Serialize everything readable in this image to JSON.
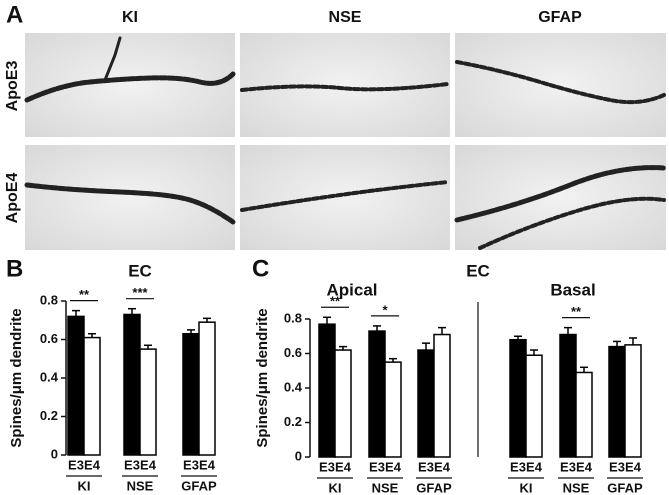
{
  "panel_a": {
    "label": "A",
    "columns": [
      "KI",
      "NSE",
      "GFAP"
    ],
    "rows": [
      "ApoE3",
      "ApoE4"
    ]
  },
  "chart_data": [
    {
      "type": "bar",
      "panel_label": "B",
      "title": "EC",
      "ylabel": "Spines/μm dendrite",
      "categories": [
        "KI",
        "NSE",
        "GFAP"
      ],
      "ylim": [
        0,
        0.8
      ],
      "yticks": [
        0,
        0.2,
        0.4,
        0.6,
        0.8
      ],
      "series": [
        {
          "name": "E3",
          "color": "#000000",
          "values": [
            0.72,
            0.73,
            0.63
          ],
          "errors": [
            0.03,
            0.03,
            0.02
          ]
        },
        {
          "name": "E4",
          "color": "#ffffff",
          "values": [
            0.61,
            0.55,
            0.69
          ],
          "errors": [
            0.02,
            0.02,
            0.02
          ]
        }
      ],
      "annotations": [
        {
          "category": "KI",
          "text": "**"
        },
        {
          "category": "NSE",
          "text": "***"
        }
      ]
    },
    {
      "type": "bar",
      "panel_label": "C",
      "suptitle": "EC",
      "title": "Apical",
      "ylabel": "Spines/μm dendrite",
      "categories": [
        "KI",
        "NSE",
        "GFAP"
      ],
      "ylim": [
        0,
        0.8
      ],
      "yticks": [
        0,
        0.2,
        0.4,
        0.6,
        0.8
      ],
      "series": [
        {
          "name": "E3",
          "color": "#000000",
          "values": [
            0.77,
            0.73,
            0.62
          ],
          "errors": [
            0.04,
            0.03,
            0.04
          ]
        },
        {
          "name": "E4",
          "color": "#ffffff",
          "values": [
            0.62,
            0.55,
            0.71
          ],
          "errors": [
            0.02,
            0.02,
            0.04
          ]
        }
      ],
      "annotations": [
        {
          "category": "KI",
          "text": "**"
        },
        {
          "category": "NSE",
          "text": "*"
        }
      ]
    },
    {
      "type": "bar",
      "title": "Basal",
      "categories": [
        "KI",
        "NSE",
        "GFAP"
      ],
      "ylim": [
        0,
        0.8
      ],
      "series": [
        {
          "name": "E3",
          "color": "#000000",
          "values": [
            0.68,
            0.71,
            0.64
          ],
          "errors": [
            0.02,
            0.04,
            0.03
          ]
        },
        {
          "name": "E4",
          "color": "#ffffff",
          "values": [
            0.59,
            0.49,
            0.65
          ],
          "errors": [
            0.03,
            0.03,
            0.04
          ]
        }
      ],
      "annotations": [
        {
          "category": "NSE",
          "text": "**"
        }
      ]
    }
  ]
}
